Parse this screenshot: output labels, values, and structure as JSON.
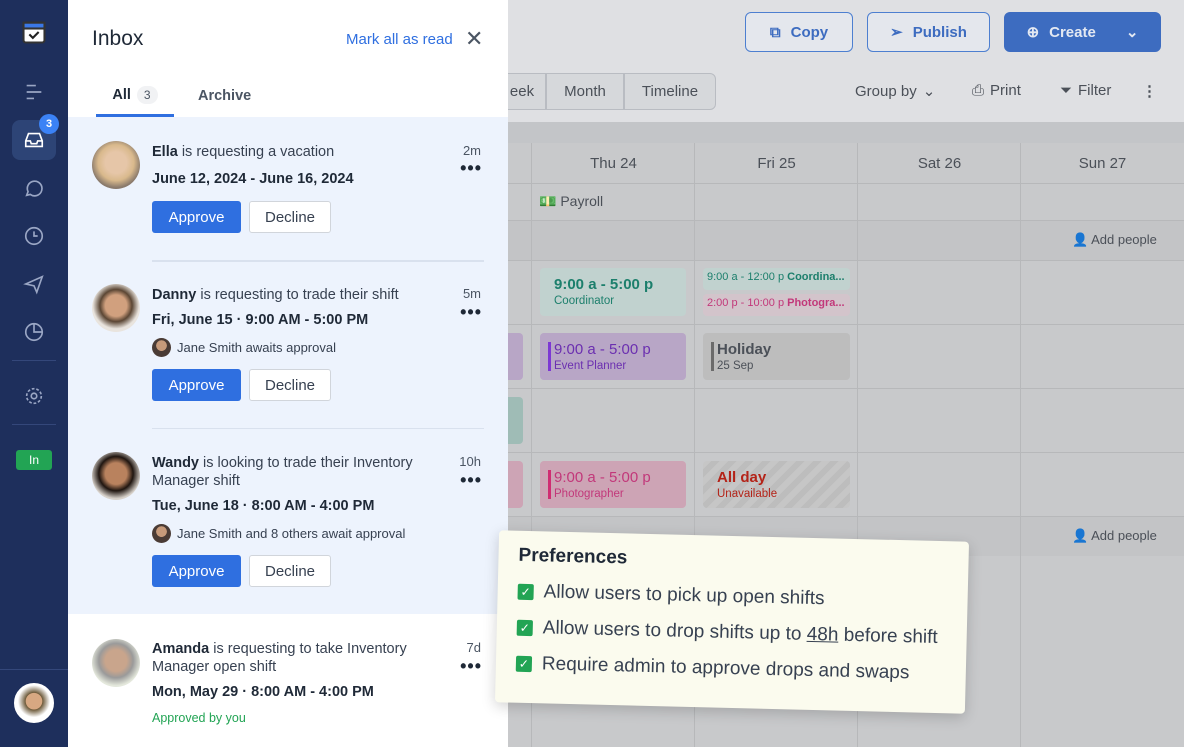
{
  "sidebar": {
    "inbox_badge": "3",
    "status_badge": "In"
  },
  "toolbar": {
    "copy": "Copy",
    "publish": "Publish",
    "create": "Create",
    "views": [
      "eek",
      "Month",
      "Timeline"
    ],
    "group_by": "Group by",
    "print": "Print",
    "filter": "Filter"
  },
  "calendar": {
    "days": [
      "Thu 24",
      "Fri 25",
      "Sat 26",
      "Sun 27"
    ],
    "payroll": "Payroll",
    "add_people": "Add people",
    "shifts": {
      "thu_coord_time": "9:00 a - 5:00 p",
      "thu_coord_role": "Coordinator",
      "fri_coord": "9:00 a - 12:00 p",
      "fri_coord_role": "Coordina...",
      "fri_photo": "2:00 p - 10:00 p",
      "fri_photo_role": "Photogra...",
      "thu_event_time": "9:00 a - 5:00 p",
      "thu_event_role": "Event Planner",
      "holiday": "Holiday",
      "holiday_date": "25 Sep",
      "thu_photo_time": "9:00 a - 5:00 p",
      "thu_photo_role": "Photographer",
      "allday": "All day",
      "unavailable": "Unavailable"
    }
  },
  "inbox": {
    "title": "Inbox",
    "mark_all": "Mark all as read",
    "tabs": {
      "all": "All",
      "all_count": "3",
      "archive": "Archive"
    },
    "approve": "Approve",
    "decline": "Decline",
    "items": [
      {
        "name": "Ella",
        "text": " is requesting a vacation",
        "date": "June 12, 2024 - June 16, 2024",
        "time": "2m"
      },
      {
        "name": "Danny",
        "text": " is requesting to trade their shift",
        "date": "Fri, June 15 · 9:00 AM - 5:00 PM",
        "time": "5m",
        "awaits": "Jane Smith awaits approval"
      },
      {
        "name": "Wandy",
        "text": "  is looking to trade their Inventory Manager shift",
        "date": "Tue, June 18 · 8:00 AM - 4:00 PM",
        "time": "10h",
        "awaits": "Jane Smith and 8 others await approval"
      },
      {
        "name": "Amanda",
        "text": " is requesting to take Inventory Manager open shift",
        "date": "Mon, May 29 · 8:00 AM - 4:00 PM",
        "time": "7d",
        "status": "Approved by you"
      }
    ]
  },
  "preferences": {
    "title": "Preferences",
    "opt1": "Allow users to pick up open shifts",
    "opt2_pre": "Allow users to drop shifts up to ",
    "opt2_val": "48h",
    "opt2_post": " before shift",
    "opt3": "Require admin to approve drops and swaps"
  }
}
